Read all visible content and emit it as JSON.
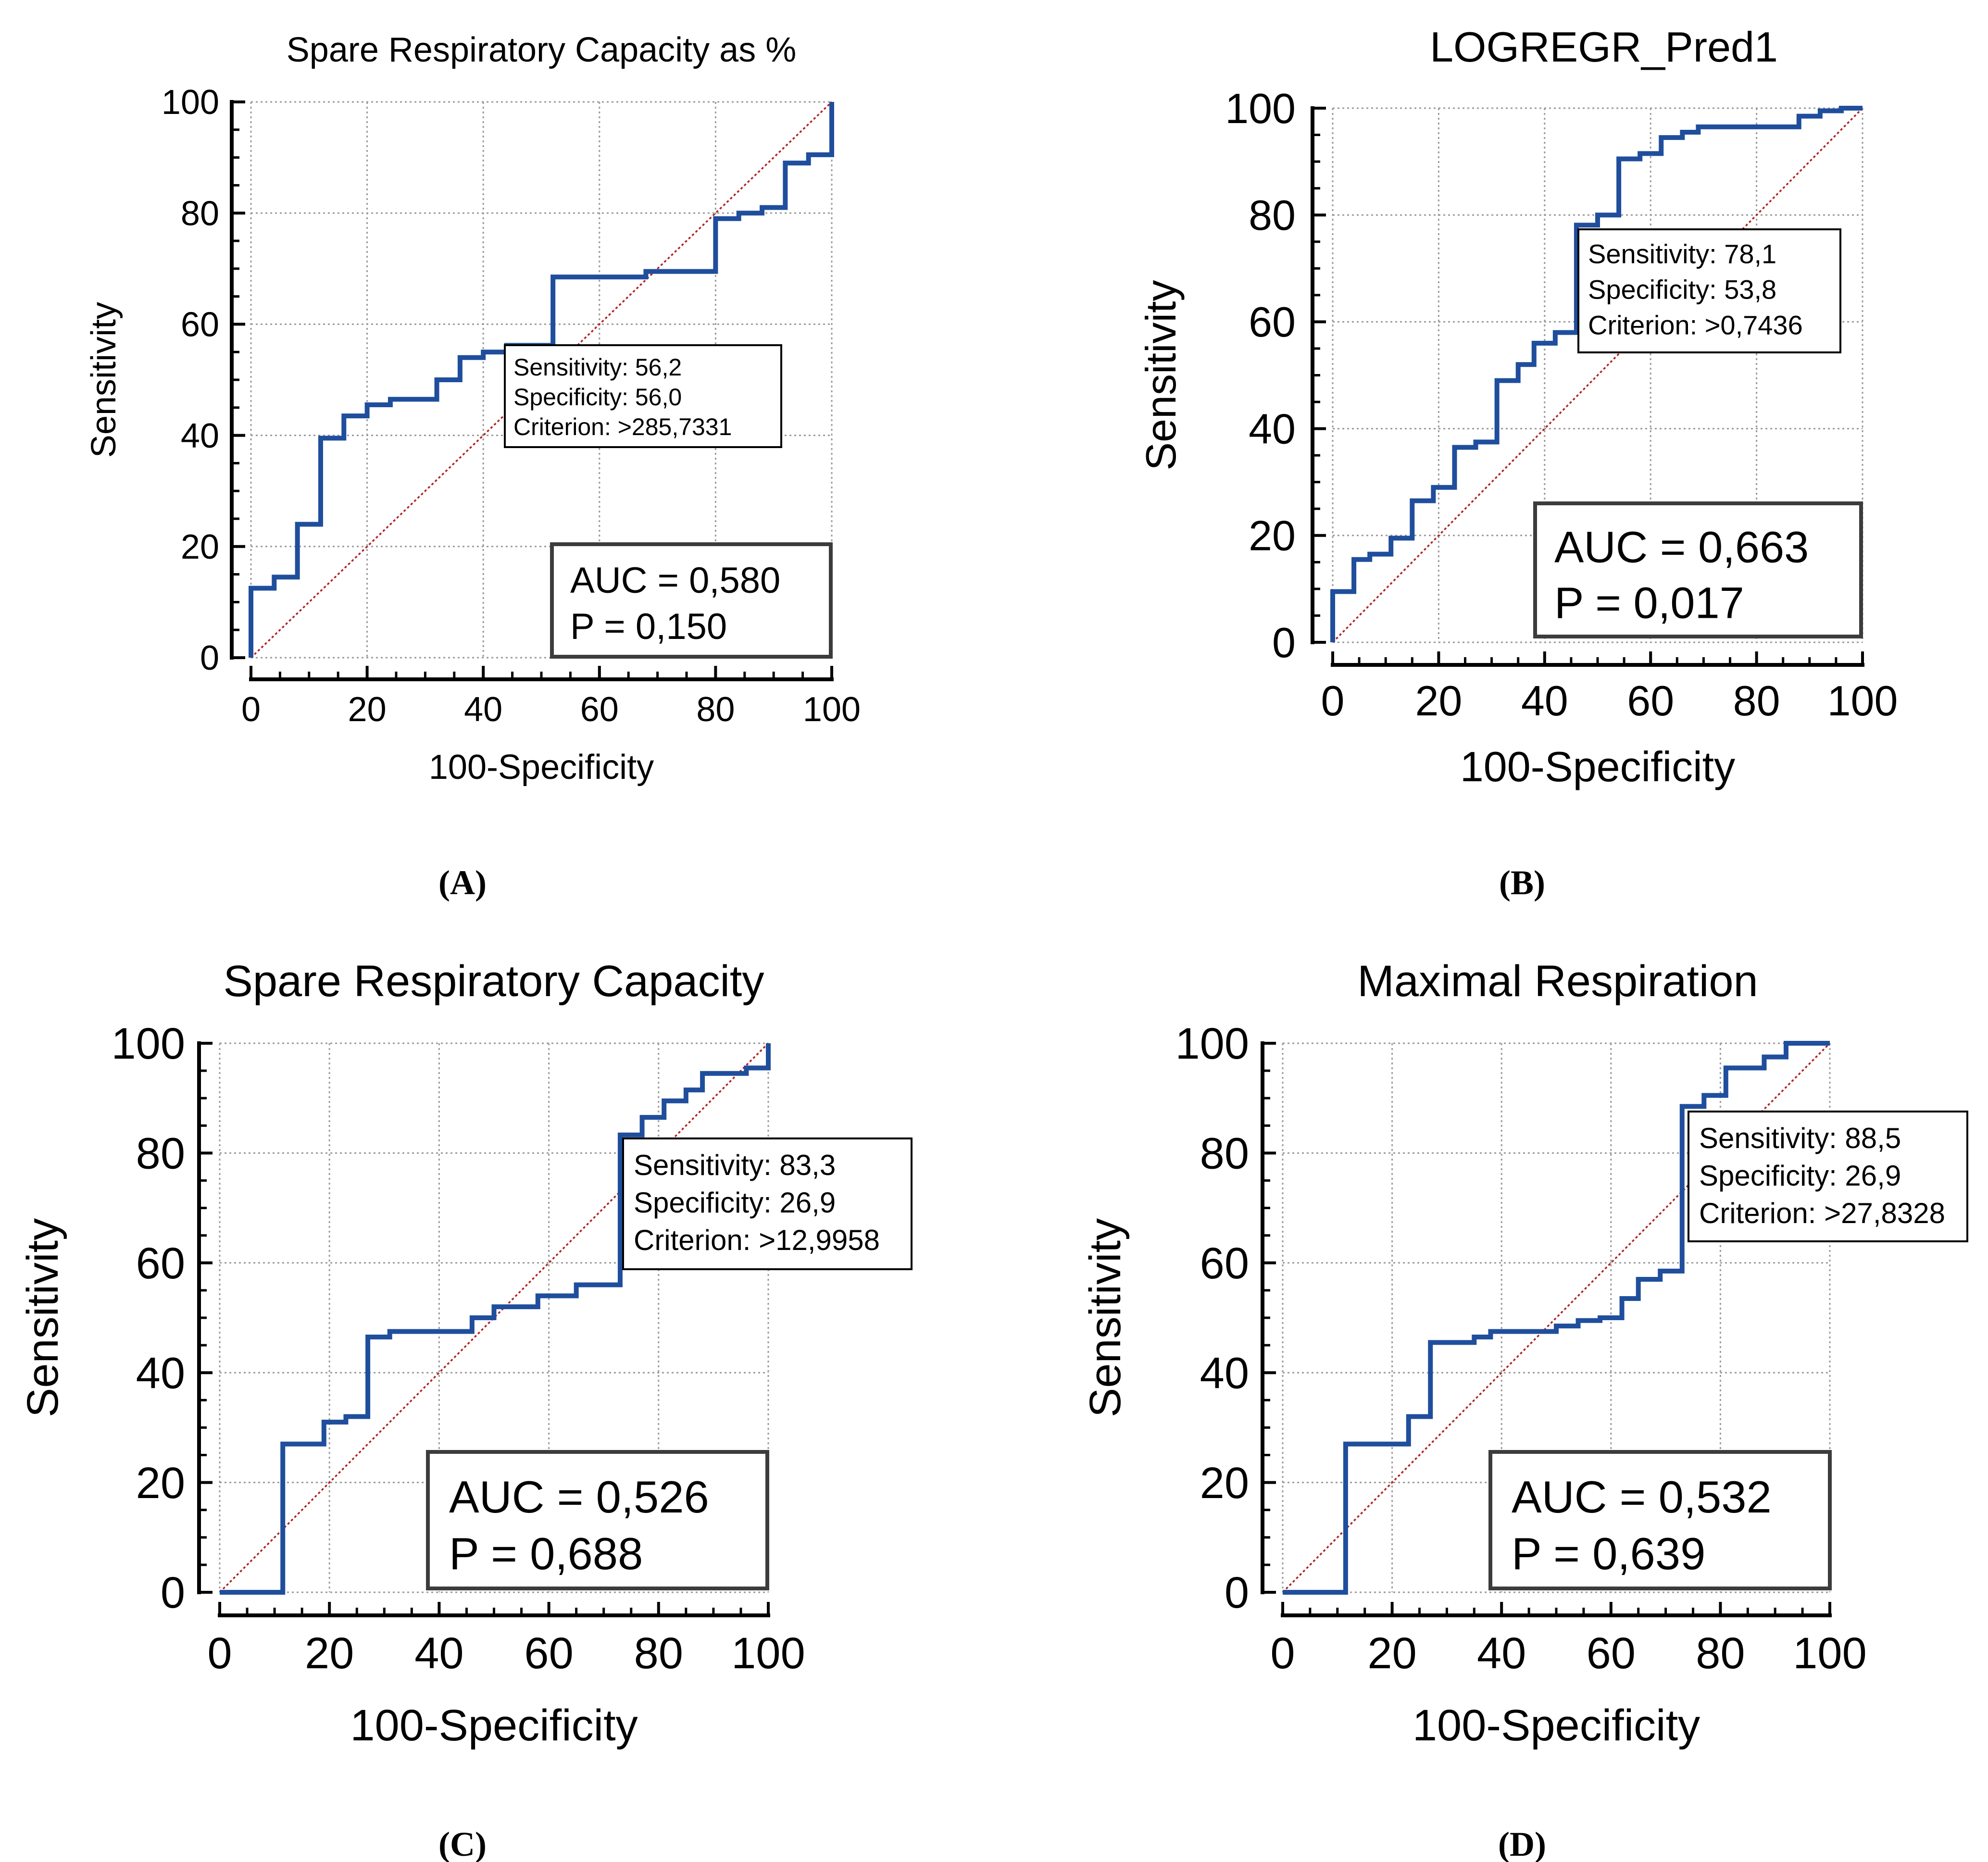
{
  "colors": {
    "roc_line": "#1f4e9c",
    "reference_line": "#b22222",
    "auc_box_border": "#3c3c3c",
    "text": "#000000"
  },
  "chart_data": [
    {
      "panel_label": "(A)",
      "type": "line",
      "title": "Spare Respiratory Capacity as %",
      "xlabel": "100-Specificity",
      "ylabel": "Sensitivity",
      "xlim": [
        0,
        100
      ],
      "ylim": [
        0,
        100
      ],
      "ticks": [
        "0",
        "20",
        "40",
        "60",
        "80",
        "100"
      ],
      "grid": true,
      "series": [
        {
          "name": "ROC",
          "x": [
            0,
            0,
            4,
            4,
            8,
            8,
            12,
            12,
            16,
            16,
            20,
            20,
            24,
            24,
            32,
            32,
            36,
            36,
            40,
            40,
            44,
            44,
            52,
            52,
            68,
            68,
            80,
            80,
            84,
            84,
            88,
            88,
            92,
            92,
            96,
            96,
            100,
            100
          ],
          "y": [
            0,
            12.5,
            12.5,
            14.5,
            14.5,
            24,
            24,
            39.5,
            39.5,
            43.5,
            43.5,
            45.5,
            45.5,
            46.5,
            46.5,
            50,
            50,
            54,
            54,
            55,
            55,
            56.2,
            56.2,
            68.5,
            68.5,
            69.5,
            69.5,
            79,
            79,
            80,
            80,
            81,
            81,
            89,
            89,
            90.5,
            90.5,
            100
          ]
        },
        {
          "name": "Reference",
          "x": [
            0,
            100
          ],
          "y": [
            0,
            100
          ]
        }
      ],
      "criterion_box": {
        "sensitivity": "Sensitivity: 56,2",
        "specificity": "Specificity: 56,0",
        "criterion": "Criterion: >285,7331"
      },
      "auc_box": {
        "auc": "AUC = 0,580",
        "p": "P = 0,150"
      }
    },
    {
      "panel_label": "(B)",
      "type": "line",
      "title": "LOGREGR_Pred1",
      "xlabel": "100-Specificity",
      "ylabel": "Sensitivity",
      "xlim": [
        0,
        100
      ],
      "ylim": [
        0,
        100
      ],
      "ticks": [
        "0",
        "20",
        "40",
        "60",
        "80",
        "100"
      ],
      "grid": true,
      "series": [
        {
          "name": "ROC",
          "x": [
            0,
            0,
            4,
            4,
            7,
            7,
            11,
            11,
            15,
            15,
            19,
            19,
            23,
            23,
            27,
            27,
            31,
            31,
            35,
            35,
            38,
            38,
            42,
            42,
            46,
            46,
            50,
            50,
            54,
            54,
            58,
            58,
            62,
            62,
            66,
            66,
            69,
            69,
            88,
            88,
            92,
            92,
            96,
            96,
            100
          ],
          "y": [
            0,
            9.5,
            9.5,
            15.5,
            15.5,
            16.5,
            16.5,
            19.5,
            19.5,
            26.5,
            26.5,
            29,
            29,
            36.5,
            36.5,
            37.5,
            37.5,
            49,
            49,
            52,
            52,
            56,
            56,
            58,
            58,
            78.1,
            78.1,
            80,
            80,
            90.5,
            90.5,
            91.5,
            91.5,
            94.5,
            94.5,
            95.5,
            95.5,
            96.5,
            96.5,
            98.5,
            98.5,
            99.5,
            99.5,
            100,
            100
          ]
        },
        {
          "name": "Reference",
          "x": [
            0,
            100
          ],
          "y": [
            0,
            100
          ]
        }
      ],
      "criterion_box": {
        "sensitivity": "Sensitivity: 78,1",
        "specificity": "Specificity: 53,8",
        "criterion": "Criterion: >0,7436"
      },
      "auc_box": {
        "auc": "AUC = 0,663",
        "p": "P = 0,017"
      }
    },
    {
      "panel_label": "(C)",
      "type": "line",
      "title": "Spare Respiratory Capacity",
      "xlabel": "100-Specificity",
      "ylabel": "Sensitivity",
      "xlim": [
        0,
        100
      ],
      "ylim": [
        0,
        100
      ],
      "ticks": [
        "0",
        "20",
        "40",
        "60",
        "80",
        "100"
      ],
      "grid": true,
      "series": [
        {
          "name": "ROC",
          "x": [
            0,
            11.5,
            11.5,
            19,
            19,
            23,
            23,
            27,
            27,
            31,
            31,
            46,
            46,
            50,
            50,
            58,
            58,
            65,
            65,
            73,
            73,
            77,
            77,
            81,
            81,
            85,
            85,
            88,
            88,
            96,
            96,
            100,
            100
          ],
          "y": [
            0,
            0,
            27,
            27,
            31,
            31,
            32,
            32,
            46.5,
            46.5,
            47.5,
            47.5,
            50,
            50,
            52,
            52,
            54,
            54,
            56,
            56,
            83.3,
            83.3,
            86.5,
            86.5,
            89.5,
            89.5,
            91.5,
            91.5,
            94.5,
            94.5,
            95.5,
            95.5,
            100
          ]
        },
        {
          "name": "Reference",
          "x": [
            0,
            100
          ],
          "y": [
            0,
            100
          ]
        }
      ],
      "criterion_box": {
        "sensitivity": "Sensitivity: 83,3",
        "specificity": "Specificity: 26,9",
        "criterion": "Criterion: >12,9958"
      },
      "auc_box": {
        "auc": "AUC = 0,526",
        "p": "P = 0,688"
      }
    },
    {
      "panel_label": "(D)",
      "type": "line",
      "title": "Maximal Respiration",
      "xlabel": "100-Specificity",
      "ylabel": "Sensitivity",
      "xlim": [
        0,
        100
      ],
      "ylim": [
        0,
        100
      ],
      "ticks": [
        "0",
        "20",
        "40",
        "60",
        "80",
        "100"
      ],
      "grid": true,
      "series": [
        {
          "name": "ROC",
          "x": [
            0,
            11.5,
            11.5,
            23,
            23,
            27,
            27,
            35,
            35,
            38,
            38,
            50,
            50,
            54,
            54,
            58,
            58,
            62,
            62,
            65,
            65,
            69,
            69,
            73,
            73,
            77,
            77,
            81,
            81,
            88,
            88,
            92,
            92,
            100
          ],
          "y": [
            0,
            0,
            27,
            27,
            32,
            32,
            45.5,
            45.5,
            46.5,
            46.5,
            47.5,
            47.5,
            48.5,
            48.5,
            49.5,
            49.5,
            50,
            50,
            53.5,
            53.5,
            57,
            57,
            58.5,
            58.5,
            88.5,
            88.5,
            90.5,
            90.5,
            95.5,
            95.5,
            97.5,
            97.5,
            100,
            100
          ]
        },
        {
          "name": "Reference",
          "x": [
            0,
            100
          ],
          "y": [
            0,
            100
          ]
        }
      ],
      "criterion_box": {
        "sensitivity": "Sensitivity: 88,5",
        "specificity": "Specificity: 26,9",
        "criterion": "Criterion: >27,8328"
      },
      "auc_box": {
        "auc": "AUC = 0,532",
        "p": "P = 0,639"
      }
    }
  ]
}
